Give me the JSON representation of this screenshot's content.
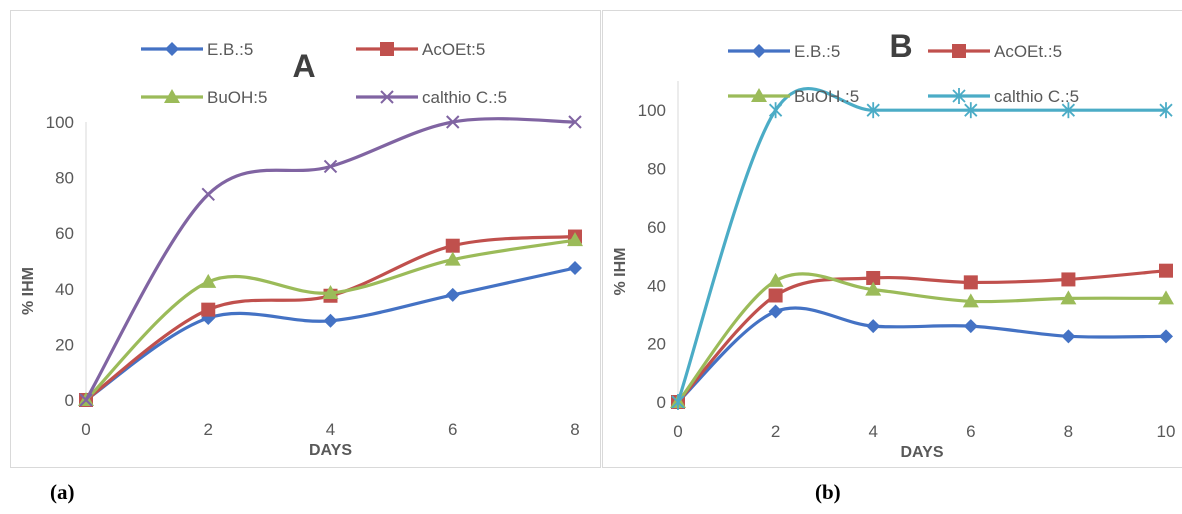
{
  "captions": {
    "a": "(a)",
    "b": "(b)"
  },
  "chart_data": [
    {
      "type": "line",
      "title": "A",
      "xlabel": "DAYS",
      "ylabel": "% IHM",
      "x": [
        0,
        2,
        4,
        6,
        8
      ],
      "xticks": [
        "0",
        "2",
        "4",
        "6",
        "8"
      ],
      "yticks": [
        "0",
        "20",
        "40",
        "60",
        "80",
        "100"
      ],
      "ylim": [
        0,
        100
      ],
      "smooth": true,
      "grid": false,
      "legend_position": "top",
      "series": [
        {
          "name": "E.B.:5",
          "color": "#4472c4",
          "marker": "diamond",
          "values": [
            0,
            29.5,
            28.5,
            37.8,
            47.5
          ]
        },
        {
          "name": "AcOEt:5",
          "color": "#c0504d",
          "marker": "square",
          "values": [
            0,
            32.5,
            37.5,
            55.5,
            58.8
          ]
        },
        {
          "name": "BuOH:5",
          "color": "#9bbb59",
          "marker": "triangle",
          "values": [
            0,
            42.5,
            38.5,
            50.5,
            57.5
          ]
        },
        {
          "name": "calthio C.:5",
          "color": "#8064a2",
          "marker": "x",
          "values": [
            0,
            74,
            84,
            100,
            100
          ]
        }
      ]
    },
    {
      "type": "line",
      "title": "B",
      "xlabel": "DAYS",
      "ylabel": "% IHM",
      "x": [
        0,
        2,
        4,
        6,
        8,
        10
      ],
      "xticks": [
        "0",
        "2",
        "4",
        "6",
        "8",
        "10"
      ],
      "yticks": [
        "0",
        "20",
        "40",
        "60",
        "80",
        "100"
      ],
      "ylim": [
        0,
        110
      ],
      "smooth": true,
      "grid": false,
      "legend_position": "top",
      "series": [
        {
          "name": "E.B.:5",
          "color": "#4472c4",
          "marker": "diamond",
          "values": [
            0,
            31,
            26,
            26,
            22.5,
            22.5
          ]
        },
        {
          "name": "AcOEt.:5",
          "color": "#c0504d",
          "marker": "square",
          "values": [
            0,
            36.5,
            42.5,
            41,
            42,
            45
          ]
        },
        {
          "name": "BuOH.:5",
          "color": "#9bbb59",
          "marker": "triangle",
          "values": [
            0,
            41.5,
            38.5,
            34.5,
            35.5,
            35.5
          ]
        },
        {
          "name": "calthio C.:5",
          "color": "#4bacc6",
          "marker": "star",
          "values": [
            0,
            100,
            100,
            100,
            100,
            100
          ]
        }
      ]
    }
  ]
}
